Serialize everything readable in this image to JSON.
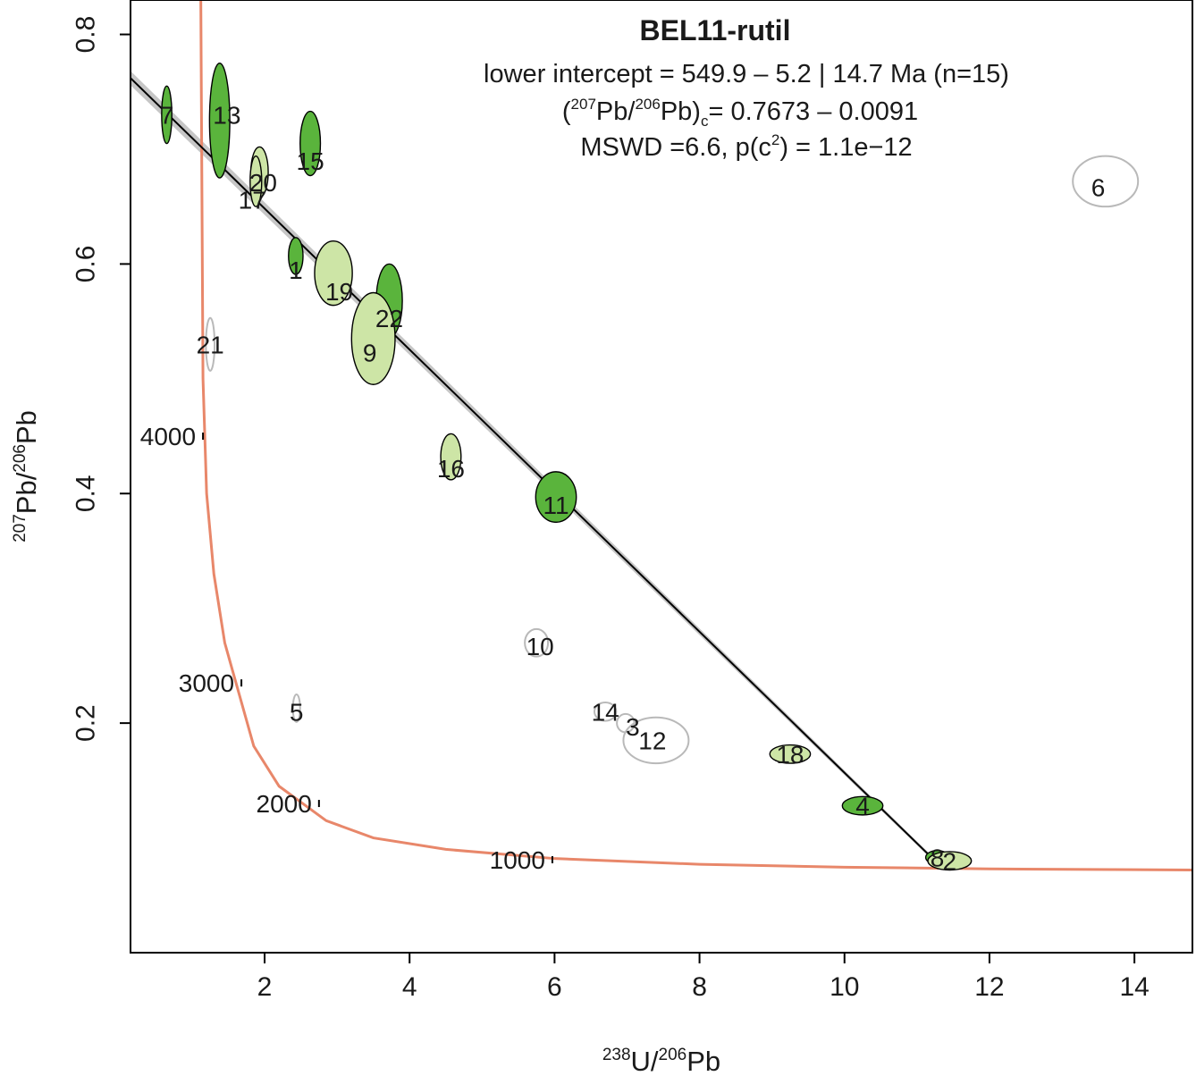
{
  "chart_data": {
    "type": "scatter",
    "title": "BEL11-rutil",
    "annotation": {
      "line1": "lower intercept = 549.9 – 5.2 | 14.7 Ma (n=15)",
      "line2_open": "(",
      "line2_sup1": "207",
      "line2_mid": "Pb/",
      "line2_sup2": "206",
      "line2_close": "Pb)",
      "line2_sub": "c",
      "line2_value": "= 0.7673 – 0.0091",
      "line3_a": "MSWD =6.6, p(c",
      "line3_sup": "2",
      "line3_b": ") = 1.1e−12"
    },
    "xlabel": {
      "sup1": "238",
      "base1": "U/",
      "sup2": "206",
      "base2": "Pb"
    },
    "ylabel": {
      "sup1": "207",
      "base1": "Pb/",
      "sup2": "206",
      "base2": "Pb"
    },
    "xlim": [
      0.15,
      14.8
    ],
    "ylim": [
      0.0,
      0.83
    ],
    "xticks": [
      2,
      4,
      6,
      8,
      10,
      12,
      14
    ],
    "yticks": [
      0.2,
      0.4,
      0.6,
      0.8
    ],
    "ytick_labels": [
      "0.2",
      "0.4",
      "0.6",
      "0.8"
    ],
    "grid": false,
    "colors": {
      "dark_green": "#5ab43c",
      "light_green": "#cde5a6",
      "excluded_outline": "#b9b9b9",
      "concordia": "#e8876a",
      "regression_band": "#c6c6c6",
      "regression_line": "#000000"
    },
    "regression": {
      "x": [
        0.15,
        11.2
      ],
      "y": [
        0.762,
        0.083
      ]
    },
    "concordia_points": [
      [
        1.12,
        0.83
      ],
      [
        1.15,
        0.5
      ],
      [
        1.2,
        0.4
      ],
      [
        1.3,
        0.33
      ],
      [
        1.45,
        0.27
      ],
      [
        1.65,
        0.225
      ],
      [
        1.85,
        0.18
      ],
      [
        2.2,
        0.145
      ],
      [
        2.85,
        0.115
      ],
      [
        3.5,
        0.1
      ],
      [
        4.5,
        0.09
      ],
      [
        6.0,
        0.082
      ],
      [
        8.0,
        0.077
      ],
      [
        10.0,
        0.0745
      ],
      [
        12.0,
        0.073
      ],
      [
        14.8,
        0.072
      ]
    ],
    "concordia_ages": [
      {
        "label": "4000",
        "x": 1.15,
        "y": 0.45
      },
      {
        "label": "3000",
        "x": 1.68,
        "y": 0.235
      },
      {
        "label": "2000",
        "x": 2.75,
        "y": 0.13
      },
      {
        "label": "1000",
        "x": 5.97,
        "y": 0.081
      }
    ],
    "points": [
      {
        "label": "7",
        "x": 0.65,
        "y": 0.73,
        "sx": 0.07,
        "sy": 0.025,
        "fill": "dark",
        "label_dx": 0.0,
        "label_dy": 0.0
      },
      {
        "label": "13",
        "x": 1.38,
        "y": 0.725,
        "sx": 0.14,
        "sy": 0.05,
        "fill": "dark",
        "label_dx": 0.1,
        "label_dy": 0.005
      },
      {
        "label": "15",
        "x": 2.63,
        "y": 0.705,
        "sx": 0.14,
        "sy": 0.028,
        "fill": "dark",
        "label_dx": 0.0,
        "label_dy": -0.015
      },
      {
        "label": "20",
        "x": 1.93,
        "y": 0.68,
        "sx": 0.12,
        "sy": 0.022,
        "fill": "light",
        "label_dx": 0.05,
        "label_dy": -0.009
      },
      {
        "label": "17",
        "x": 1.88,
        "y": 0.672,
        "sx": 0.08,
        "sy": 0.022,
        "fill": "light",
        "label_dx": -0.05,
        "label_dy": -0.016
      },
      {
        "label": "1",
        "x": 2.43,
        "y": 0.607,
        "sx": 0.1,
        "sy": 0.016,
        "fill": "dark",
        "label_dx": 0.0,
        "label_dy": -0.012
      },
      {
        "label": "19",
        "x": 2.95,
        "y": 0.592,
        "sx": 0.26,
        "sy": 0.028,
        "fill": "light",
        "label_dx": 0.08,
        "label_dy": -0.016
      },
      {
        "label": "22",
        "x": 3.72,
        "y": 0.568,
        "sx": 0.18,
        "sy": 0.032,
        "fill": "dark",
        "label_dx": 0.0,
        "label_dy": -0.015
      },
      {
        "label": "9",
        "x": 3.5,
        "y": 0.535,
        "sx": 0.3,
        "sy": 0.04,
        "fill": "light",
        "label_dx": -0.05,
        "label_dy": -0.012
      },
      {
        "label": "21",
        "x": 1.25,
        "y": 0.53,
        "sx": 0.06,
        "sy": 0.023,
        "fill": "none",
        "label_dx": 0.0,
        "label_dy": 0.0
      },
      {
        "label": "16",
        "x": 4.57,
        "y": 0.432,
        "sx": 0.14,
        "sy": 0.02,
        "fill": "light",
        "label_dx": 0.0,
        "label_dy": -0.01
      },
      {
        "label": "11",
        "x": 6.02,
        "y": 0.397,
        "sx": 0.28,
        "sy": 0.022,
        "fill": "dark",
        "label_dx": 0.0,
        "label_dy": -0.007
      },
      {
        "label": "6",
        "x": 13.6,
        "y": 0.672,
        "sx": 0.45,
        "sy": 0.022,
        "fill": "none",
        "label_dx": -0.1,
        "label_dy": -0.005
      },
      {
        "label": "10",
        "x": 5.75,
        "y": 0.27,
        "sx": 0.16,
        "sy": 0.012,
        "fill": "none",
        "label_dx": 0.05,
        "label_dy": -0.003
      },
      {
        "label": "5",
        "x": 2.44,
        "y": 0.213,
        "sx": 0.05,
        "sy": 0.012,
        "fill": "none",
        "label_dx": 0.0,
        "label_dy": -0.003
      },
      {
        "label": "14",
        "x": 6.7,
        "y": 0.21,
        "sx": 0.15,
        "sy": 0.008,
        "fill": "none",
        "label_dx": 0.0,
        "label_dy": 0.0
      },
      {
        "label": "3",
        "x": 6.98,
        "y": 0.2,
        "sx": 0.12,
        "sy": 0.008,
        "fill": "none",
        "label_dx": 0.1,
        "label_dy": -0.003
      },
      {
        "label": "12",
        "x": 7.4,
        "y": 0.185,
        "sx": 0.45,
        "sy": 0.02,
        "fill": "none",
        "label_dx": -0.05,
        "label_dy": 0.0
      },
      {
        "label": "18",
        "x": 9.25,
        "y": 0.173,
        "sx": 0.28,
        "sy": 0.008,
        "fill": "light",
        "label_dx": 0.0,
        "label_dy": 0.0
      },
      {
        "label": "4",
        "x": 10.25,
        "y": 0.128,
        "sx": 0.28,
        "sy": 0.008,
        "fill": "dark",
        "label_dx": 0.0,
        "label_dy": 0.0
      },
      {
        "label": "8",
        "x": 11.28,
        "y": 0.083,
        "sx": 0.16,
        "sy": 0.006,
        "fill": "dark",
        "label_dx": 0.0,
        "label_dy": 0.0
      },
      {
        "label": "2",
        "x": 11.45,
        "y": 0.08,
        "sx": 0.3,
        "sy": 0.008,
        "fill": "light",
        "label_dx": 0.0,
        "label_dy": 0.0
      }
    ]
  }
}
